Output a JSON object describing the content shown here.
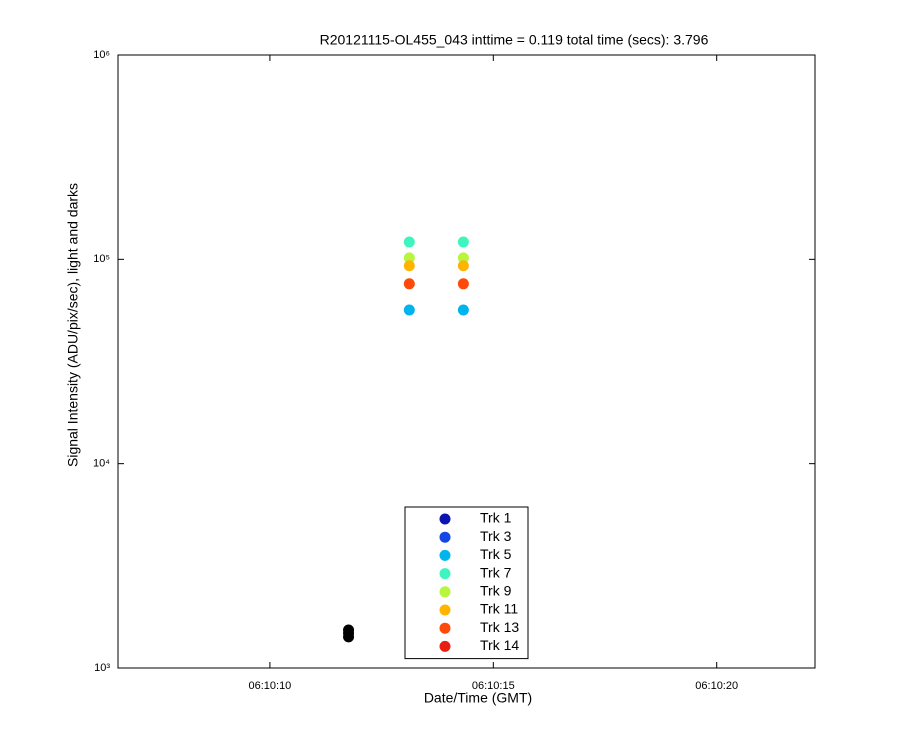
{
  "chart_data": {
    "type": "scatter",
    "title": "R20121115-OL455_043 inttime = 0.119 total time (secs): 3.796",
    "x_label": "Date/Time (GMT)",
    "y_label": "Signal Intensity (ADU/pix/sec), light and darks",
    "log_y": true,
    "xlim": [
      6.6,
      22.2
    ],
    "xticks": [
      {
        "value": 10,
        "label": "06:10:10"
      },
      {
        "value": 15,
        "label": "06:10:15"
      },
      {
        "value": 20,
        "label": "06:10:20"
      }
    ],
    "ylim": [
      1000,
      1000000
    ],
    "yticks": [
      {
        "value": 1000,
        "label": "10³"
      },
      {
        "value": 10000,
        "label": "10⁴"
      },
      {
        "value": 100000,
        "label": "10⁵"
      },
      {
        "value": 1000000,
        "label": "10⁶"
      }
    ],
    "x": [
      13.12,
      14.33
    ],
    "series": [
      {
        "name": "Trk 1",
        "color": "#0a14b0",
        "values": [
          null,
          null
        ]
      },
      {
        "name": "Trk 3",
        "color": "#1448e6",
        "values": [
          null,
          null
        ]
      },
      {
        "name": "Trk 5",
        "color": "#00b4ee",
        "values": [
          56500,
          56500
        ]
      },
      {
        "name": "Trk 7",
        "color": "#3ef5c0",
        "values": [
          121600,
          121600
        ]
      },
      {
        "name": "Trk 9",
        "color": "#b8f53c",
        "values": [
          101600,
          101600
        ]
      },
      {
        "name": "Trk 11",
        "color": "#ffb400",
        "values": [
          93000,
          93000
        ]
      },
      {
        "name": "Trk 13",
        "color": "#ff4a0a",
        "values": [
          75900,
          75900
        ]
      },
      {
        "name": "Trk 14",
        "color": "#e8200f",
        "values": [
          null,
          null
        ]
      },
      {
        "color": "#000000",
        "x": [
          11.76,
          11.76,
          11.76
        ],
        "values": [
          1535,
          1480,
          1420
        ]
      }
    ],
    "legend": "lower-center"
  }
}
